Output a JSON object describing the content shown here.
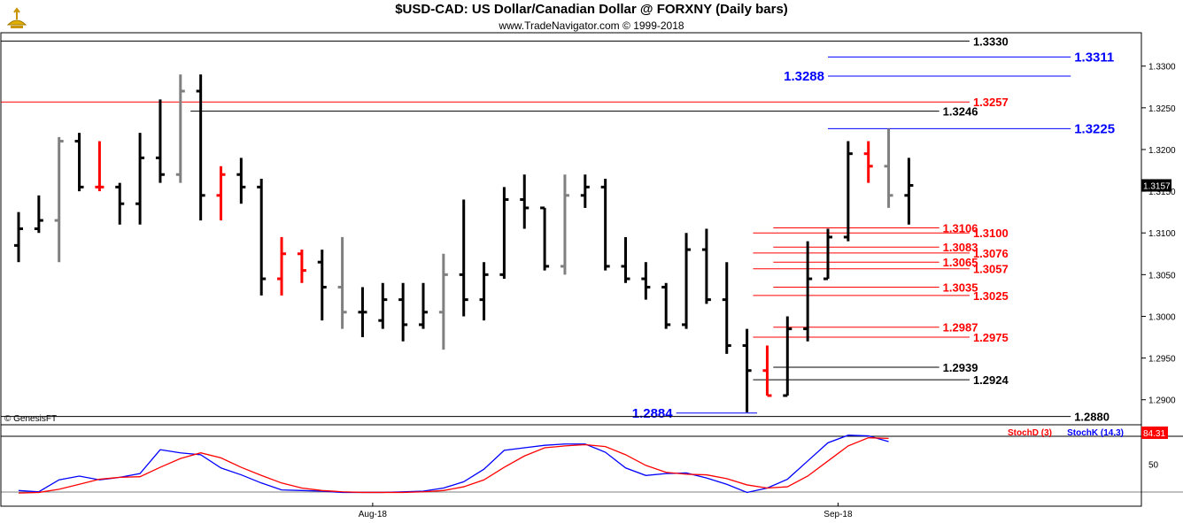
{
  "header": {
    "title": "$USD-CAD:  US Dollar/Canadian Dollar @ FORXNY  (Daily bars)",
    "subtitle": "www.TradeNavigator.com © 1999-2018",
    "copyright": "© GenesisFT",
    "logo": "genie-lamp-logo"
  },
  "colors": {
    "up": "#000000",
    "down": "#ff0000",
    "neutral": "#808080",
    "blue": "#0000ff",
    "red": "#ff0000",
    "stochD": "#ff0000",
    "stochK": "#0000ff",
    "last_price_bg": "#000000",
    "stoch_value_bg": "#ff0000"
  },
  "chart_data": [
    {
      "type": "ohlc",
      "title": "$USD-CAD:  US Dollar/Canadian Dollar @ FORXNY  (Daily bars)",
      "ylim": [
        1.287,
        1.334
      ],
      "y_ticks": [
        "1.3300",
        "1.3250",
        "1.3200",
        "1.3150",
        "1.3100",
        "1.3050",
        "1.3000",
        "1.2950",
        "1.2900"
      ],
      "x_ticks": [
        {
          "label": "Aug-18",
          "index": 17.5
        },
        {
          "label": "Sep-18",
          "index": 40.5
        }
      ],
      "last_price": "1.3157",
      "bars": [
        {
          "o": 1.3085,
          "h": 1.3125,
          "l": 1.3065,
          "c": 1.3105,
          "color": "up"
        },
        {
          "o": 1.3105,
          "h": 1.3145,
          "l": 1.31,
          "c": 1.3115,
          "color": "up"
        },
        {
          "o": 1.3115,
          "h": 1.3215,
          "l": 1.3065,
          "c": 1.321,
          "color": "neutral"
        },
        {
          "o": 1.321,
          "h": 1.322,
          "l": 1.315,
          "c": 1.3155,
          "color": "up"
        },
        {
          "o": 1.3155,
          "h": 1.321,
          "l": 1.315,
          "c": 1.3155,
          "color": "down"
        },
        {
          "o": 1.3155,
          "h": 1.316,
          "l": 1.311,
          "c": 1.3135,
          "color": "up"
        },
        {
          "o": 1.3135,
          "h": 1.322,
          "l": 1.311,
          "c": 1.319,
          "color": "up"
        },
        {
          "o": 1.319,
          "h": 1.326,
          "l": 1.316,
          "c": 1.317,
          "color": "up"
        },
        {
          "o": 1.317,
          "h": 1.329,
          "l": 1.316,
          "c": 1.327,
          "color": "neutral"
        },
        {
          "o": 1.327,
          "h": 1.329,
          "l": 1.3115,
          "c": 1.3145,
          "color": "up"
        },
        {
          "o": 1.3145,
          "h": 1.318,
          "l": 1.3115,
          "c": 1.317,
          "color": "down"
        },
        {
          "o": 1.317,
          "h": 1.319,
          "l": 1.3135,
          "c": 1.3155,
          "color": "up"
        },
        {
          "o": 1.3155,
          "h": 1.3165,
          "l": 1.3025,
          "c": 1.3045,
          "color": "up"
        },
        {
          "o": 1.3045,
          "h": 1.3095,
          "l": 1.3025,
          "c": 1.3075,
          "color": "down"
        },
        {
          "o": 1.3075,
          "h": 1.308,
          "l": 1.304,
          "c": 1.3055,
          "color": "down"
        },
        {
          "o": 1.3065,
          "h": 1.308,
          "l": 1.2995,
          "c": 1.3035,
          "color": "up"
        },
        {
          "o": 1.3035,
          "h": 1.3095,
          "l": 1.2985,
          "c": 1.3005,
          "color": "neutral"
        },
        {
          "o": 1.3005,
          "h": 1.3035,
          "l": 1.2975,
          "c": 1.3005,
          "color": "up"
        },
        {
          "o": 1.2995,
          "h": 1.304,
          "l": 1.2985,
          "c": 1.302,
          "color": "up"
        },
        {
          "o": 1.302,
          "h": 1.304,
          "l": 1.297,
          "c": 1.299,
          "color": "up"
        },
        {
          "o": 1.299,
          "h": 1.304,
          "l": 1.2985,
          "c": 1.3005,
          "color": "up"
        },
        {
          "o": 1.3005,
          "h": 1.3075,
          "l": 1.296,
          "c": 1.305,
          "color": "neutral"
        },
        {
          "o": 1.305,
          "h": 1.314,
          "l": 1.3,
          "c": 1.302,
          "color": "up"
        },
        {
          "o": 1.302,
          "h": 1.3065,
          "l": 1.2995,
          "c": 1.305,
          "color": "up"
        },
        {
          "o": 1.305,
          "h": 1.3155,
          "l": 1.3045,
          "c": 1.314,
          "color": "up"
        },
        {
          "o": 1.314,
          "h": 1.317,
          "l": 1.3105,
          "c": 1.313,
          "color": "up"
        },
        {
          "o": 1.313,
          "h": 1.313,
          "l": 1.3055,
          "c": 1.306,
          "color": "up"
        },
        {
          "o": 1.306,
          "h": 1.317,
          "l": 1.305,
          "c": 1.3145,
          "color": "neutral"
        },
        {
          "o": 1.3145,
          "h": 1.317,
          "l": 1.313,
          "c": 1.3155,
          "color": "up"
        },
        {
          "o": 1.3155,
          "h": 1.3165,
          "l": 1.3055,
          "c": 1.306,
          "color": "up"
        },
        {
          "o": 1.306,
          "h": 1.3095,
          "l": 1.304,
          "c": 1.3045,
          "color": "up"
        },
        {
          "o": 1.3045,
          "h": 1.3065,
          "l": 1.302,
          "c": 1.3035,
          "color": "up"
        },
        {
          "o": 1.3035,
          "h": 1.304,
          "l": 1.2985,
          "c": 1.299,
          "color": "up"
        },
        {
          "o": 1.299,
          "h": 1.31,
          "l": 1.2985,
          "c": 1.308,
          "color": "up"
        },
        {
          "o": 1.308,
          "h": 1.3105,
          "l": 1.3015,
          "c": 1.302,
          "color": "up"
        },
        {
          "o": 1.302,
          "h": 1.3065,
          "l": 1.2955,
          "c": 1.2965,
          "color": "up"
        },
        {
          "o": 1.2965,
          "h": 1.2985,
          "l": 1.2885,
          "c": 1.2935,
          "color": "up"
        },
        {
          "o": 1.2935,
          "h": 1.2965,
          "l": 1.2905,
          "c": 1.2905,
          "color": "down"
        },
        {
          "o": 1.2905,
          "h": 1.3,
          "l": 1.2905,
          "c": 1.2985,
          "color": "up"
        },
        {
          "o": 1.2985,
          "h": 1.309,
          "l": 1.297,
          "c": 1.3045,
          "color": "up"
        },
        {
          "o": 1.3045,
          "h": 1.3105,
          "l": 1.3045,
          "c": 1.3095,
          "color": "up"
        },
        {
          "o": 1.3095,
          "h": 1.321,
          "l": 1.309,
          "c": 1.3195,
          "color": "up"
        },
        {
          "o": 1.3195,
          "h": 1.321,
          "l": 1.316,
          "c": 1.318,
          "color": "down"
        },
        {
          "o": 1.318,
          "h": 1.3225,
          "l": 1.313,
          "c": 1.3145,
          "color": "neutral"
        },
        {
          "o": 1.3145,
          "h": 1.319,
          "l": 1.311,
          "c": 1.3157,
          "color": "up"
        }
      ],
      "level_lines": [
        {
          "value": 1.333,
          "label": "1.3330",
          "color": "black",
          "from": 0,
          "to": 47
        },
        {
          "value": 1.3311,
          "label": "1.3311",
          "color": "blue",
          "from": 40,
          "to": 52
        },
        {
          "value": 1.3288,
          "label": "1.3288",
          "color": "blue",
          "from": 40,
          "to": 52
        },
        {
          "value": 1.3257,
          "label": "1.3257",
          "color": "red",
          "from": 0,
          "to": 47
        },
        {
          "value": 1.3246,
          "label": "1.3246",
          "color": "black",
          "from": 8.5,
          "to": 45.5
        },
        {
          "value": 1.3225,
          "label": "1.3225",
          "color": "blue",
          "from": 40,
          "to": 52
        },
        {
          "value": 1.3106,
          "label": "1.3106",
          "color": "red",
          "from": 37.3,
          "to": 45.5
        },
        {
          "value": 1.31,
          "label": "1.3100",
          "color": "red",
          "from": 36.3,
          "to": 47
        },
        {
          "value": 1.3083,
          "label": "1.3083",
          "color": "red",
          "from": 37.3,
          "to": 45.5
        },
        {
          "value": 1.3076,
          "label": "1.3076",
          "color": "red",
          "from": 36.3,
          "to": 47
        },
        {
          "value": 1.3065,
          "label": "1.3065",
          "color": "red",
          "from": 37.3,
          "to": 45.5
        },
        {
          "value": 1.3057,
          "label": "1.3057",
          "color": "red",
          "from": 36.3,
          "to": 47
        },
        {
          "value": 1.3035,
          "label": "1.3035",
          "color": "red",
          "from": 37.3,
          "to": 45.5
        },
        {
          "value": 1.3025,
          "label": "1.3025",
          "color": "red",
          "from": 36.3,
          "to": 47
        },
        {
          "value": 1.2987,
          "label": "1.2987",
          "color": "red",
          "from": 37.3,
          "to": 45.5
        },
        {
          "value": 1.2975,
          "label": "1.2975",
          "color": "red",
          "from": 36.3,
          "to": 47
        },
        {
          "value": 1.2939,
          "label": "1.2939",
          "color": "black",
          "from": 37.3,
          "to": 45.5
        },
        {
          "value": 1.2924,
          "label": "1.2924",
          "color": "black",
          "from": 36.3,
          "to": 47
        },
        {
          "value": 1.2884,
          "label": "1.2884",
          "color": "blue",
          "from": 32.5,
          "to": 36.5
        },
        {
          "value": 1.288,
          "label": "1.2880",
          "color": "black",
          "from": 0,
          "to": 52
        }
      ]
    },
    {
      "type": "line",
      "title": "Stochastic",
      "ylim": [
        0,
        100
      ],
      "y_ticks": [
        "50"
      ],
      "legend": [
        "StochD (3)",
        "StochK (14,3)"
      ],
      "current_value": "84.31",
      "series": [
        {
          "name": "StochK (14,3)",
          "color": "stochK",
          "values": [
            8,
            6,
            25,
            31,
            25,
            29,
            35,
            73,
            68,
            65,
            44,
            33,
            20,
            9,
            8,
            7,
            5,
            5,
            5,
            6,
            7,
            12,
            22,
            42,
            72,
            76,
            80,
            82,
            82,
            69,
            44,
            32,
            35,
            36,
            28,
            18,
            5,
            12,
            26,
            55,
            84,
            96,
            95,
            86
          ]
        },
        {
          "name": "StochD (3)",
          "color": "stochD",
          "values": [
            4,
            5,
            10,
            18,
            26,
            29,
            30,
            45,
            59,
            68,
            60,
            45,
            32,
            20,
            12,
            8,
            6,
            5,
            5,
            5,
            6,
            8,
            14,
            25,
            45,
            63,
            76,
            79,
            81,
            78,
            65,
            48,
            37,
            34,
            33,
            27,
            17,
            12,
            14,
            31,
            55,
            79,
            92,
            91
          ]
        }
      ]
    }
  ]
}
